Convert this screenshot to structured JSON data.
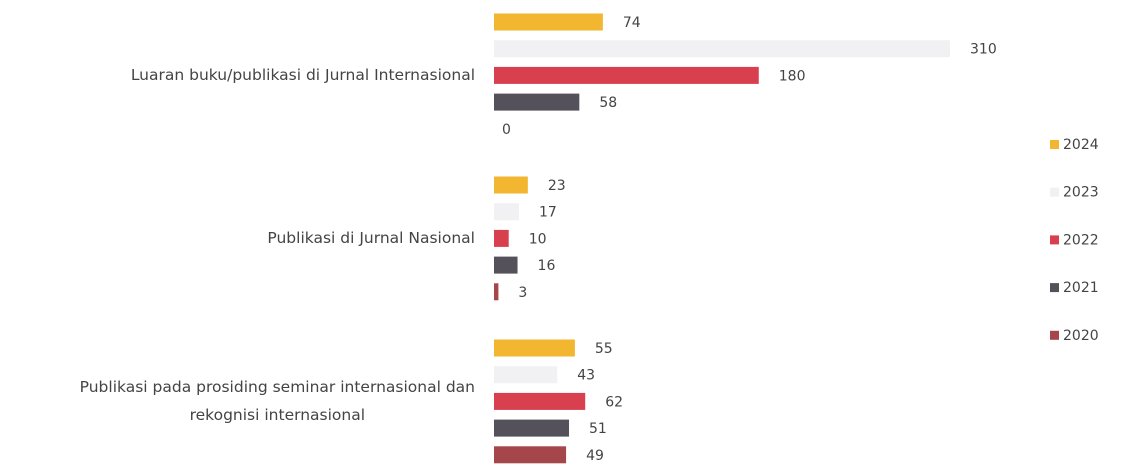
{
  "chart_data": {
    "type": "barh",
    "categories": [
      "Luaran buku/publikasi di Jurnal Internasional",
      "Publikasi di Jurnal Nasional",
      "Publikasi pada prosiding seminar internasional dan rekognisi internasional"
    ],
    "series": [
      {
        "name": "2024",
        "color": "#f2b630",
        "values": [
          74,
          23,
          55
        ]
      },
      {
        "name": "2023",
        "color": "#f1f1f4",
        "values": [
          310,
          17,
          43
        ]
      },
      {
        "name": "2022",
        "color": "#d9404f",
        "values": [
          180,
          10,
          62
        ]
      },
      {
        "name": "2021",
        "color": "#55515a",
        "values": [
          58,
          16,
          51
        ]
      },
      {
        "name": "2020",
        "color": "#a5464b",
        "values": [
          0,
          3,
          49
        ]
      }
    ],
    "legend": "right"
  }
}
